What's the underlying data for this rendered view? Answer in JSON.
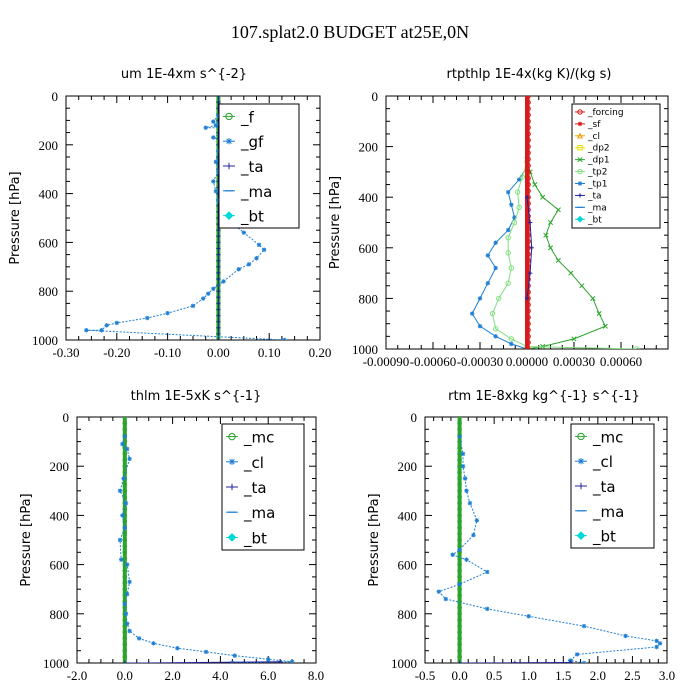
{
  "title": "107.splat2.0  BUDGET at25E,0N",
  "colors": {
    "blue": "#1f7fd4",
    "blue_dark": "#10408a",
    "green": "#2aa52a",
    "green_light": "#7fe07f",
    "red": "#d81b1b",
    "cyan": "#00d8d8",
    "orange": "#f0a000",
    "yellow": "#e8e000",
    "navy": "#2020a0"
  },
  "chart_data": [
    {
      "id": "um",
      "type": "line",
      "title": "um  1E-4xm s^{-2}",
      "xlabel": "",
      "ylabel": "Pressure [hPa]",
      "xlim": [
        -0.3,
        0.2
      ],
      "ylim": [
        1000,
        0
      ],
      "xticks": [
        -0.3,
        -0.2,
        -0.1,
        0.0,
        0.1,
        0.2
      ],
      "xtick_labels": [
        "-0.30",
        "-0.20",
        "-0.10",
        "0.00",
        "0.10",
        "0.20"
      ],
      "yticks": [
        0,
        200,
        400,
        600,
        800,
        1000
      ],
      "ytick_labels": [
        "0",
        "200",
        "400",
        "600",
        "800",
        "1000"
      ],
      "legend_style": "large",
      "legend": [
        {
          "label": "_f",
          "color": "#2aa52a",
          "marker": "circle"
        },
        {
          "label": "_gf",
          "color": "#1f7fd4",
          "marker": "star"
        },
        {
          "label": "_ta",
          "color": "#2020a0",
          "marker": "plus"
        },
        {
          "label": "_ma",
          "color": "#1f7fd4",
          "marker": "dash"
        },
        {
          "label": "_bt",
          "color": "#00d8d8",
          "marker": "diamond"
        }
      ],
      "series": [
        {
          "name": "_f",
          "color": "#2aa52a",
          "marker": "circle",
          "width": 4,
          "x": [
            0.0,
            0.0
          ],
          "y": [
            0,
            1000
          ]
        },
        {
          "name": "_ta",
          "color": "#2020a0",
          "marker": "plus",
          "width": 1,
          "x": [
            0.0,
            0.0
          ],
          "y": [
            0,
            1000
          ]
        },
        {
          "name": "_gf",
          "color": "#1f7fd4",
          "marker": "star",
          "width": 1,
          "dashed": true,
          "x": [
            0.0,
            -0.01,
            0.005,
            -0.005,
            -0.025,
            0.03,
            0.005,
            -0.01,
            0.01,
            0.04,
            0.0,
            -0.005,
            0.0,
            -0.01,
            -0.005,
            0.0,
            0.005,
            0.02,
            0.05,
            0.08,
            0.09,
            0.075,
            0.06,
            0.04,
            0.01,
            -0.01,
            -0.02,
            -0.03,
            -0.05,
            -0.1,
            -0.14,
            -0.2,
            -0.22,
            -0.23,
            -0.26,
            0.13
          ],
          "y": [
            80,
            105,
            110,
            120,
            130,
            130,
            150,
            170,
            185,
            205,
            225,
            270,
            310,
            350,
            390,
            430,
            470,
            510,
            560,
            610,
            630,
            665,
            690,
            710,
            760,
            790,
            810,
            830,
            860,
            890,
            910,
            930,
            940,
            960,
            960,
            1000
          ]
        },
        {
          "name": "_bt",
          "color": "#00d8d8",
          "marker": "diamond",
          "width": 1,
          "x": [
            0.01,
            0.01
          ],
          "y": [
            115,
            125
          ]
        }
      ]
    },
    {
      "id": "rtpthlp",
      "type": "line",
      "title": "rtpthlp  1E-4x(kg K)/(kg s)",
      "xlabel": "",
      "ylabel": "Pressure [hPa]",
      "xlim": [
        -0.0009,
        0.0009
      ],
      "ylim": [
        1000,
        0
      ],
      "xticks": [
        -0.0009,
        -0.0006,
        -0.0003,
        0.0,
        0.0003,
        0.0006
      ],
      "xtick_labels": [
        "-0.00090",
        "-0.00060",
        "-0.00030",
        "0.00000",
        "0.00030",
        "0.00060"
      ],
      "yticks": [
        0,
        200,
        400,
        600,
        800,
        1000
      ],
      "ytick_labels": [
        "0",
        "200",
        "400",
        "600",
        "800",
        "1000"
      ],
      "legend_style": "small",
      "legend": [
        {
          "label": "_forcing",
          "color": "#d81b1b",
          "marker": "circle"
        },
        {
          "label": "_sf",
          "color": "#d81b1b",
          "marker": "star"
        },
        {
          "label": "_cl",
          "color": "#f0a000",
          "marker": "triangle"
        },
        {
          "label": "_dp2",
          "color": "#e8e000",
          "marker": "square"
        },
        {
          "label": "_dp1",
          "color": "#2aa52a",
          "marker": "cross"
        },
        {
          "label": "_tp2",
          "color": "#7fe07f",
          "marker": "circle"
        },
        {
          "label": "_tp1",
          "color": "#1f7fd4",
          "marker": "star"
        },
        {
          "label": "_ta",
          "color": "#2020a0",
          "marker": "plus"
        },
        {
          "label": "_ma",
          "color": "#1f7fd4",
          "marker": "dash"
        },
        {
          "label": "_bt",
          "color": "#00d8d8",
          "marker": "diamond"
        }
      ],
      "series": [
        {
          "name": "_dp1",
          "color": "#2aa52a",
          "marker": "cross",
          "width": 1,
          "x": [
            0.0,
            2e-05,
            5e-05,
            0.0001,
            0.0002,
            0.00015,
            0.00012,
            0.00015,
            0.0002,
            0.00028,
            0.00035,
            0.00042,
            0.00046,
            0.0005,
            0.0003,
            0.0001,
            0.0
          ],
          "y": [
            250,
            300,
            350,
            400,
            450,
            500,
            550,
            600,
            650,
            700,
            750,
            800,
            860,
            910,
            960,
            990,
            1000
          ]
        },
        {
          "name": "_tp1",
          "color": "#1f7fd4",
          "marker": "star",
          "width": 1,
          "x": [
            0.0,
            -5e-05,
            -0.00012,
            -0.0001,
            -8e-05,
            -0.00012,
            -0.0002,
            -0.00025,
            -0.0002,
            -0.00025,
            -0.0003,
            -0.00035,
            -0.0003,
            -0.0002,
            -0.0001,
            0.0
          ],
          "y": [
            280,
            330,
            380,
            430,
            480,
            530,
            580,
            630,
            680,
            740,
            800,
            860,
            910,
            950,
            980,
            1000
          ]
        },
        {
          "name": "_tp2",
          "color": "#7fe07f",
          "marker": "circle",
          "width": 1,
          "x": [
            0.0,
            -3e-05,
            -6e-05,
            -5e-05,
            -8e-05,
            -0.00012,
            -0.00012,
            -0.0001,
            -0.00012,
            -0.00018,
            -0.00022,
            -0.0002,
            -0.0001,
            0.0,
            0.0007
          ],
          "y": [
            260,
            320,
            380,
            440,
            500,
            560,
            620,
            680,
            740,
            800,
            860,
            920,
            960,
            990,
            1000
          ]
        },
        {
          "name": "_sf",
          "color": "#d81b1b",
          "marker": "star",
          "width": 4,
          "x": [
            0.0,
            0.0
          ],
          "y": [
            0,
            1000
          ]
        },
        {
          "name": "_forcing",
          "color": "#d81b1b",
          "marker": "circle",
          "width": 2,
          "x": [
            1e-05,
            1e-05
          ],
          "y": [
            0,
            1000
          ]
        },
        {
          "name": "_ta",
          "color": "#2020a0",
          "marker": "plus",
          "width": 1,
          "x": [
            0.0,
            2e-05,
            3e-05,
            2e-05,
            0.0
          ],
          "y": [
            400,
            500,
            600,
            700,
            800
          ]
        }
      ]
    },
    {
      "id": "thlm",
      "type": "line",
      "title": "thlm  1E-5xK s^{-1}",
      "xlabel": "",
      "ylabel": "Pressure [hPa]",
      "xlim": [
        -2.0,
        8.0
      ],
      "ylim": [
        1000,
        0
      ],
      "xticks": [
        -2.0,
        0.0,
        2.0,
        4.0,
        6.0,
        8.0
      ],
      "xtick_labels": [
        "-2.0",
        "0.0",
        "2.0",
        "4.0",
        "6.0",
        "8.0"
      ],
      "yticks": [
        0,
        200,
        400,
        600,
        800,
        1000
      ],
      "ytick_labels": [
        "0",
        "200",
        "400",
        "600",
        "800",
        "1000"
      ],
      "legend_style": "large",
      "legend": [
        {
          "label": "_mc",
          "color": "#2aa52a",
          "marker": "circle"
        },
        {
          "label": "_cl",
          "color": "#1f7fd4",
          "marker": "star"
        },
        {
          "label": "_ta",
          "color": "#2020a0",
          "marker": "plus"
        },
        {
          "label": "_ma",
          "color": "#1f7fd4",
          "marker": "dash"
        },
        {
          "label": "_bt",
          "color": "#00d8d8",
          "marker": "diamond"
        }
      ],
      "series": [
        {
          "name": "_mc",
          "color": "#2aa52a",
          "marker": "circle",
          "width": 4,
          "x": [
            0.0,
            0.0
          ],
          "y": [
            0,
            1000
          ]
        },
        {
          "name": "_cl",
          "color": "#1f7fd4",
          "marker": "star",
          "width": 1,
          "dashed": true,
          "x": [
            0.0,
            -0.1,
            0.1,
            0.2,
            -0.05,
            -0.2,
            0.05,
            -0.1,
            0.0,
            -0.2,
            -0.15,
            0.1,
            0.2,
            0.1,
            0.0,
            0.05,
            0.1,
            0.2,
            0.6,
            1.2,
            2.2,
            3.4,
            4.6,
            6.0,
            7.0,
            4.5
          ],
          "y": [
            80,
            110,
            130,
            170,
            250,
            300,
            350,
            400,
            450,
            500,
            580,
            600,
            670,
            720,
            760,
            800,
            840,
            870,
            900,
            920,
            940,
            955,
            970,
            985,
            995,
            1000
          ]
        },
        {
          "name": "_ta",
          "color": "#2020a0",
          "marker": "plus",
          "width": 1,
          "x": [
            0.0,
            1.0,
            3.0,
            6.5
          ],
          "y": [
            1000,
            1000,
            998,
            995
          ]
        }
      ]
    },
    {
      "id": "rtm",
      "type": "line",
      "title": "rtm  1E-8xkg kg^{-1} s^{-1}",
      "xlabel": "",
      "ylabel": "Pressure [hPa]",
      "xlim": [
        -0.5,
        3.0
      ],
      "ylim": [
        1000,
        0
      ],
      "xticks": [
        -0.5,
        0.0,
        0.5,
        1.0,
        1.5,
        2.0,
        2.5,
        3.0
      ],
      "xtick_labels": [
        "-0.5",
        "0.0",
        "0.5",
        "1.0",
        "1.5",
        "2.0",
        "2.5",
        "3.0"
      ],
      "yticks": [
        0,
        200,
        400,
        600,
        800,
        1000
      ],
      "ytick_labels": [
        "0",
        "200",
        "400",
        "600",
        "800",
        "1000"
      ],
      "legend_style": "large",
      "legend": [
        {
          "label": "_mc",
          "color": "#2aa52a",
          "marker": "circle"
        },
        {
          "label": "_cl",
          "color": "#1f7fd4",
          "marker": "star"
        },
        {
          "label": "_ta",
          "color": "#2020a0",
          "marker": "plus"
        },
        {
          "label": "_ma",
          "color": "#1f7fd4",
          "marker": "dash"
        },
        {
          "label": "_bt",
          "color": "#00d8d8",
          "marker": "diamond"
        }
      ],
      "series": [
        {
          "name": "_mc",
          "color": "#2aa52a",
          "marker": "circle",
          "width": 4,
          "x": [
            0.0,
            0.0
          ],
          "y": [
            0,
            1000
          ]
        },
        {
          "name": "_cl",
          "color": "#1f7fd4",
          "marker": "star",
          "width": 1,
          "dashed": true,
          "x": [
            0.0,
            0.05,
            0.05,
            0.08,
            0.1,
            0.15,
            0.25,
            0.2,
            0.0,
            -0.1,
            0.1,
            0.4,
            0.0,
            -0.3,
            -0.2,
            0.4,
            1.0,
            1.8,
            2.4,
            2.85,
            2.9,
            2.85,
            1.7,
            1.6,
            1.8
          ],
          "y": [
            80,
            150,
            200,
            250,
            300,
            350,
            420,
            480,
            540,
            560,
            580,
            630,
            680,
            710,
            740,
            780,
            810,
            850,
            890,
            910,
            920,
            935,
            965,
            990,
            1000
          ]
        },
        {
          "name": "_ta",
          "color": "#2020a0",
          "marker": "plus",
          "width": 1,
          "x": [
            0.0,
            0.8,
            1.6
          ],
          "y": [
            1000,
            999,
            998
          ]
        }
      ]
    }
  ]
}
